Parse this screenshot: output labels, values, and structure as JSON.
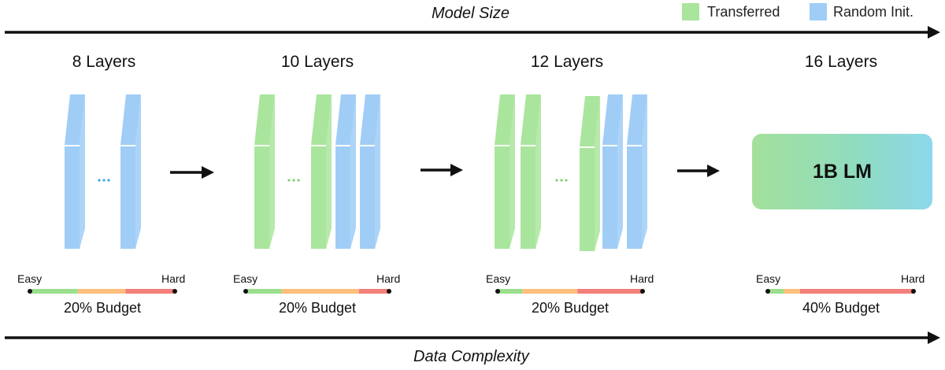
{
  "axes": {
    "top_label": "Model Size",
    "bottom_label": "Data Complexity"
  },
  "legend": [
    {
      "label": "Transferred",
      "color": "#a9e59c",
      "icon": "green-square"
    },
    {
      "label": "Random Init.",
      "color": "#9fcdf6",
      "icon": "blue-square"
    }
  ],
  "stages": [
    {
      "title": "8 Layers",
      "budget": "20% Budget",
      "easy": "Easy",
      "hard": "Hard",
      "segments": [
        {
          "color": "#9bdf8e",
          "fraction": 0.33
        },
        {
          "color": "#fcbf7c",
          "fraction": 0.33
        },
        {
          "color": "#f37f7a",
          "fraction": 0.34
        }
      ]
    },
    {
      "title": "10 Layers",
      "budget": "20% Budget",
      "easy": "Easy",
      "hard": "Hard",
      "segments": [
        {
          "color": "#9bdf8e",
          "fraction": 0.25
        },
        {
          "color": "#fcbf7c",
          "fraction": 0.54
        },
        {
          "color": "#f37f7a",
          "fraction": 0.21
        }
      ]
    },
    {
      "title": "12 Layers",
      "budget": "20% Budget",
      "easy": "Easy",
      "hard": "Hard",
      "segments": [
        {
          "color": "#9bdf8e",
          "fraction": 0.17
        },
        {
          "color": "#fcbf7c",
          "fraction": 0.38
        },
        {
          "color": "#f37f7a",
          "fraction": 0.45
        }
      ]
    },
    {
      "title": "16 Layers",
      "budget": "40% Budget",
      "easy": "Easy",
      "hard": "Hard",
      "segments": [
        {
          "color": "#9bdf8e",
          "fraction": 0.11
        },
        {
          "color": "#fcbf7c",
          "fraction": 0.11
        },
        {
          "color": "#f37f7a",
          "fraction": 0.78
        }
      ]
    }
  ],
  "final_model": {
    "label": "1B LM"
  },
  "colors": {
    "transferred": "#a9e59c",
    "random_init": "#9fcdf6",
    "arrow": "#111111"
  }
}
